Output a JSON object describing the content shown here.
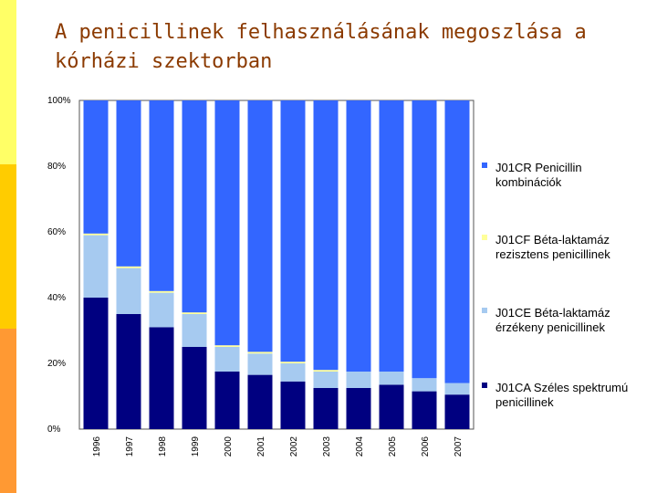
{
  "slide": {
    "title": "A penicillinek felhasználásának megoszlása a kórházi szektorban",
    "accent_colors": [
      "#ffff66",
      "#ffcc00",
      "#ff9933"
    ]
  },
  "chart_data": {
    "type": "bar",
    "stacked": true,
    "percent_stacked": true,
    "title": "",
    "xlabel": "",
    "ylabel": "",
    "ylim": [
      0,
      100
    ],
    "y_ticks": [
      "0%",
      "20%",
      "40%",
      "60%",
      "80%",
      "100%"
    ],
    "categories": [
      "1996",
      "1997",
      "1998",
      "1999",
      "2000",
      "2001",
      "2002",
      "2003",
      "2004",
      "2005",
      "2006",
      "2007"
    ],
    "series": [
      {
        "name": "J01CA Széles spektrumú penicillinek",
        "color": "#000080",
        "values": [
          40,
          35,
          31,
          25,
          17.5,
          16.5,
          14.5,
          12.5,
          12.5,
          13.5,
          11.5,
          10.5
        ]
      },
      {
        "name": "J01CE Béta-laktamáz érzékeny penicillinek",
        "color": "#a6caf0",
        "values": [
          19,
          14,
          10.5,
          10,
          7.5,
          6.5,
          5.5,
          5,
          5,
          4,
          4,
          3.5
        ]
      },
      {
        "name": "J01CF Béta-laktamáz rezisztens penicillinek",
        "color": "#ffff99",
        "values": [
          0.5,
          0.5,
          0.5,
          0.5,
          0.5,
          0.5,
          0.5,
          0.5,
          0,
          0,
          0,
          0
        ]
      },
      {
        "name": "J01CR Penicillin kombinációk",
        "color": "#3366ff",
        "values": [
          40.5,
          50.5,
          58,
          64.5,
          74.5,
          76.5,
          79.5,
          82,
          82.5,
          82.5,
          84.5,
          86
        ]
      }
    ],
    "legend": {
      "placement": "right",
      "entries": [
        {
          "series": 3,
          "lines": [
            "J01CR Penicillin",
            "kombinációk"
          ]
        },
        {
          "series": 2,
          "lines": [
            "J01CF Béta-laktamáz",
            "rezisztens penicillinek"
          ]
        },
        {
          "series": 1,
          "lines": [
            "J01CE Béta-laktamáz",
            "érzékeny penicillinek"
          ]
        },
        {
          "series": 0,
          "lines": [
            "J01CA Széles spektrumú",
            "penicillinek"
          ]
        }
      ]
    },
    "grid": false
  }
}
